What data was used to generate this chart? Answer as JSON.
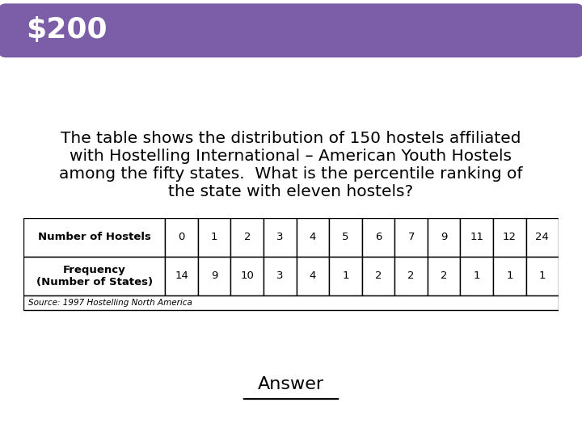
{
  "title": "$200",
  "title_bg_color": "#7B5EA7",
  "title_text_color": "#FFFFFF",
  "body_text": "The table shows the distribution of 150 hostels affiliated\nwith Hostelling International – American Youth Hostels\namong the fifty states.  What is the percentile ranking of\nthe state with eleven hostels?",
  "table_row1_label": "Number of Hostels",
  "table_row2_label": "Frequency\n(Number of States)",
  "table_source": "Source: 1997 Hostelling North America",
  "col_headers": [
    "0",
    "1",
    "2",
    "3",
    "4",
    "5",
    "6",
    "7",
    "9",
    "11",
    "12",
    "24"
  ],
  "frequencies": [
    "14",
    "9",
    "10",
    "3",
    "4",
    "1",
    "2",
    "2",
    "2",
    "1",
    "1",
    "1"
  ],
  "answer_text": "Answer",
  "bg_color": "#FFFFFF",
  "border_color": "#000000"
}
